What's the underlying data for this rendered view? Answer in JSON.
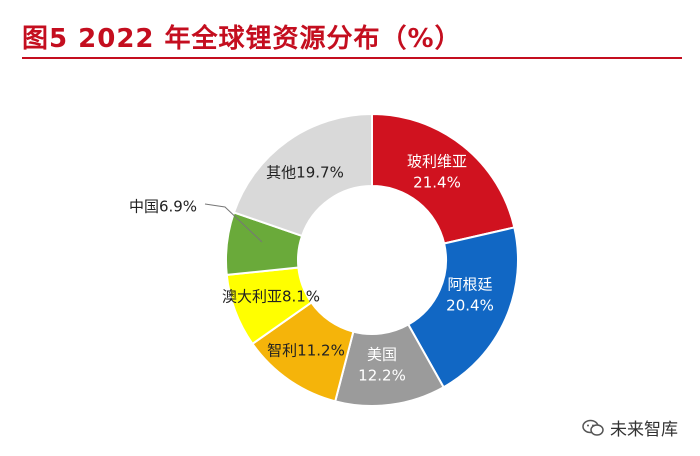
{
  "header": {
    "title": "图5  2022 年全球锂资源分布（%）"
  },
  "watermark": {
    "text": "未来智库",
    "icon": "wechat-icon"
  },
  "colors": {
    "title": "#c40e1f",
    "rule": "#c40e1f"
  },
  "chart_data": {
    "type": "pie",
    "subtype": "donut",
    "title": "",
    "unit": "%",
    "categories": [
      "玻利维亚",
      "阿根廷",
      "美国",
      "智利",
      "澳大利亚",
      "中国",
      "其他"
    ],
    "values": [
      21.4,
      20.4,
      12.2,
      11.2,
      8.1,
      6.9,
      19.7
    ],
    "value_labels": [
      "21.4%",
      "20.4%",
      "12.2%",
      "11.2%",
      "8.1%",
      "6.9%",
      "19.7%"
    ],
    "colors": [
      "#d0121f",
      "#1167c4",
      "#9b9b9b",
      "#f5b40a",
      "#ffff00",
      "#6aaa3a",
      "#d9d9d9"
    ],
    "label_text_colors": [
      "#ffffff",
      "#ffffff",
      "#ffffff",
      "#222222",
      "#222222",
      "#222222",
      "#222222"
    ],
    "legend": "none"
  }
}
